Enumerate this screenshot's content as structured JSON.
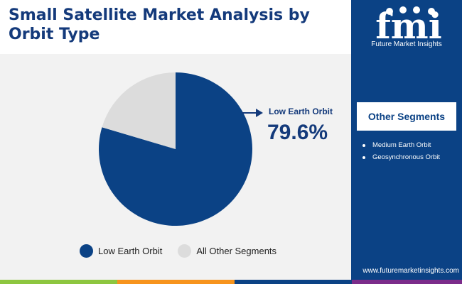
{
  "header": {
    "title": "Small Satellite Market Analysis by Orbit Type"
  },
  "brand": {
    "logo_text": "fmi",
    "name": "Future Market Insights",
    "url": "www.futuremarketinsights.com"
  },
  "sidebar": {
    "title": "Other Segments",
    "items": [
      "Medium Earth Orbit",
      "Geosynchronous Orbit"
    ]
  },
  "callout": {
    "label": "Low Earth Orbit",
    "value": "79.6%"
  },
  "colors": {
    "primary": "#0b4285",
    "secondary": "#dcdcdc",
    "title": "#143a7b",
    "footer": [
      "#8dc63f",
      "#f7941d",
      "#0b4285",
      "#7b2c8a"
    ]
  },
  "chart_data": {
    "type": "pie",
    "title": "",
    "slices": [
      {
        "name": "Low Earth Orbit",
        "value": 79.6,
        "color": "#0b4285"
      },
      {
        "name": "All Other Segments",
        "value": 20.4,
        "color": "#dcdcdc"
      }
    ],
    "start_angle_deg": 0,
    "direction": "clockwise",
    "legend_position": "bottom"
  }
}
